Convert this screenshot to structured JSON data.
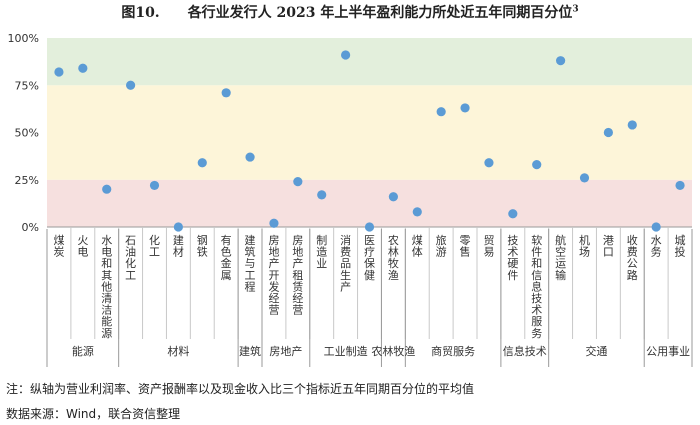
{
  "title": {
    "fig_label": "图10.",
    "text": "各行业发行人 2023 年上半年盈利能力所处近五年同期百分位",
    "superscript": "3"
  },
  "note": "注：纵轴为营业利润率、资产报酬率以及现金收入比三个指标近五年同期百分位的平均值",
  "source": "数据来源：Wind，联合资信整理",
  "colors": {
    "point": "#5b9bd5",
    "band_high": "#e3efdc",
    "band_mid": "#fdf5d9",
    "band_low": "#f6e0df"
  },
  "chart_data": {
    "type": "scatter",
    "ylim": [
      0,
      100
    ],
    "yticks": [
      "0%",
      "25%",
      "50%",
      "75%",
      "100%"
    ],
    "bands": [
      {
        "from": 0,
        "to": 25,
        "color": "#f6e0df"
      },
      {
        "from": 25,
        "to": 75,
        "color": "#fdf5d9"
      },
      {
        "from": 75,
        "to": 100,
        "color": "#e3efdc"
      }
    ],
    "categories": [
      "煤炭",
      "火电",
      "水电和其他清洁能源",
      "石油化工",
      "化工",
      "建材",
      "钢铁",
      "有色金属",
      "建筑与工程",
      "房地产开发经营",
      "房地产租赁经营",
      "制造业",
      "消费品生产",
      "医疗保健",
      "农林牧渔",
      "煤体",
      "旅游",
      "零售",
      "贸易",
      "技术硬件",
      "软件和信息技术服务",
      "航空运输",
      "机场",
      "港口",
      "收费公路",
      "水务",
      "城投"
    ],
    "values": [
      82,
      84,
      20,
      75,
      22,
      0,
      34,
      71,
      37,
      2,
      24,
      17,
      91,
      0,
      16,
      8,
      61,
      63,
      34,
      7,
      33,
      88,
      26,
      50,
      54,
      0,
      22
    ],
    "groups": [
      {
        "name": "能源",
        "count": 3
      },
      {
        "name": "材料",
        "count": 5
      },
      {
        "name": "建筑",
        "count": 1
      },
      {
        "name": "房地产",
        "count": 2
      },
      {
        "name": "工业制造",
        "count": 3
      },
      {
        "name": "农林牧渔",
        "count": 1
      },
      {
        "name": "商贸服务",
        "count": 4
      },
      {
        "name": "信息技术",
        "count": 2
      },
      {
        "name": "交通",
        "count": 4
      },
      {
        "name": "公用事业",
        "count": 2
      }
    ]
  }
}
